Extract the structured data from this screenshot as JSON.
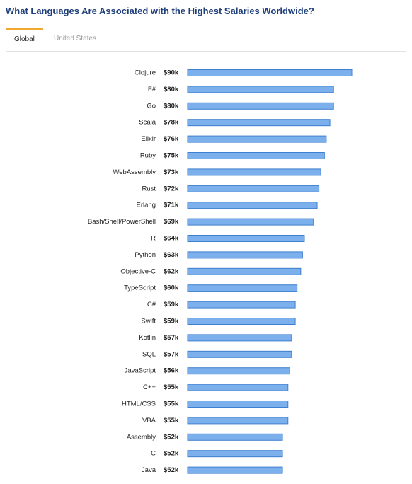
{
  "chart_data": {
    "type": "bar",
    "orientation": "horizontal",
    "title": "What Languages Are Associated with the Highest Salaries Worldwide?",
    "tabs": [
      "Global",
      "United States"
    ],
    "categories": [
      "Clojure",
      "F#",
      "Go",
      "Scala",
      "Elixir",
      "Ruby",
      "WebAssembly",
      "Rust",
      "Erlang",
      "Bash/Shell/PowerShell",
      "R",
      "Python",
      "Objective-C",
      "TypeScript",
      "C#",
      "Swift",
      "Kotlin",
      "SQL",
      "JavaScript",
      "C++",
      "HTML/CSS",
      "VBA",
      "Assembly",
      "C",
      "Java"
    ],
    "values": [
      90,
      80,
      80,
      78,
      76,
      75,
      73,
      72,
      71,
      69,
      64,
      63,
      62,
      60,
      59,
      59,
      57,
      57,
      56,
      55,
      55,
      55,
      52,
      52,
      52
    ],
    "value_labels": [
      "$90k",
      "$80k",
      "$80k",
      "$78k",
      "$76k",
      "$75k",
      "$73k",
      "$72k",
      "$71k",
      "$69k",
      "$64k",
      "$63k",
      "$62k",
      "$60k",
      "$59k",
      "$59k",
      "$57k",
      "$57k",
      "$56k",
      "$55k",
      "$55k",
      "$55k",
      "$52k",
      "$52k",
      "$52k"
    ],
    "color": "#7cb0ec",
    "edgecolor": "#3f7fcf"
  }
}
